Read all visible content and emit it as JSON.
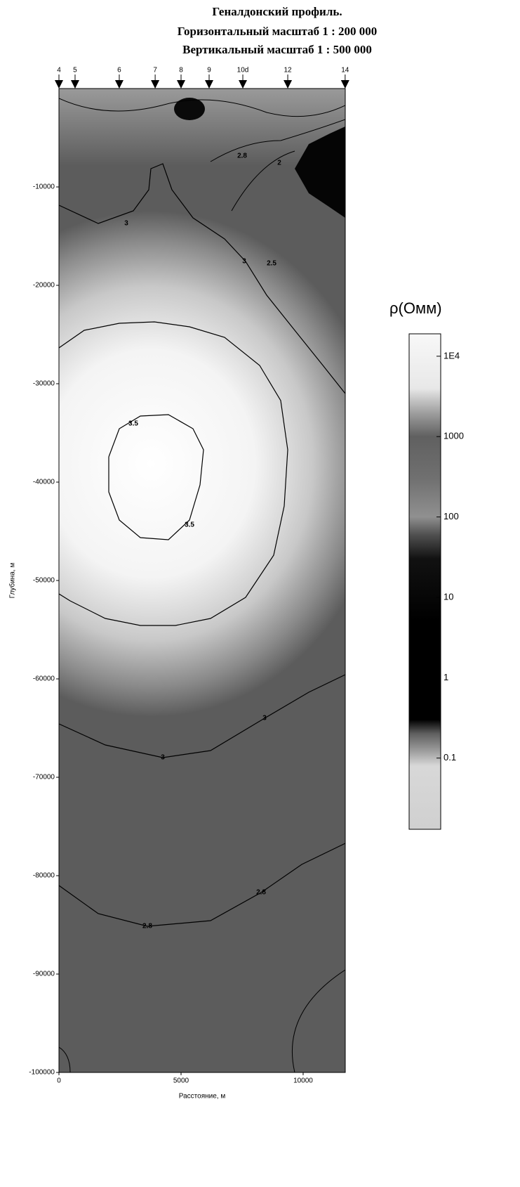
{
  "chart_data": {
    "type": "contour",
    "title": [
      "Геналдонский профиль.",
      "Горизонтальный масштаб 1 : 200 000",
      "Вертикальный масштаб 1 : 500 000"
    ],
    "x_label": "Расстояние, м",
    "y_label": "Глубина, м",
    "xlim": [
      0,
      11725
    ],
    "ylim": [
      -100000,
      0
    ],
    "xticks": [
      0,
      5000,
      10000
    ],
    "yticks": [
      -10000,
      -20000,
      -30000,
      -40000,
      -50000,
      -60000,
      -70000,
      -80000,
      -90000,
      -100000
    ],
    "stations": {
      "labels": [
        "4",
        "5",
        "6",
        "7",
        "8",
        "9",
        "10d",
        "12",
        "14"
      ],
      "x": [
        0,
        660,
        2470,
        3940,
        5000,
        6150,
        7530,
        9370,
        11720
      ]
    },
    "contours": [
      {
        "level": 3.5,
        "x": [
          2040,
          2472,
          3334,
          4483,
          5489,
          5920,
          5777,
          5346,
          4483,
          3334,
          2472,
          2040,
          2040
        ],
        "y": [
          -37429,
          -34571,
          -33286,
          -33143,
          -34571,
          -36714,
          -40286,
          -43857,
          -45857,
          -45643,
          -43857,
          -41000,
          -37429
        ]
      },
      {
        "level": 3,
        "x": [
          0,
          1035,
          2472,
          3909,
          5346,
          6783,
          8220,
          9082,
          9369,
          9226,
          8795,
          7645,
          6208,
          4771,
          3334,
          1897,
          460,
          0
        ],
        "y": [
          -26357,
          -24571,
          -23857,
          -23714,
          -24214,
          -25286,
          -28143,
          -31714,
          -36714,
          -42429,
          -47429,
          -51714,
          -53857,
          -54571,
          -54571,
          -53857,
          -52071,
          -51357
        ]
      },
      {
        "level": 3,
        "x": [
          0,
          1609,
          3046,
          3679,
          3765,
          4253,
          4627,
          5489,
          6783,
          7645,
          8507,
          9656,
          10811,
          11725
        ],
        "y": [
          -11857,
          -13714,
          -12429,
          -10286,
          -8143,
          -7643,
          -10286,
          -13143,
          -15286,
          -17571,
          -21000,
          -24571,
          -28143,
          -31000
        ]
      },
      {
        "level": 3,
        "x": [
          0,
          1897,
          4253,
          6208,
          8421,
          10231,
          11725
        ],
        "y": [
          -64571,
          -66714,
          -68000,
          -67286,
          -64000,
          -61357,
          -59571
        ]
      },
      {
        "level": 2.8,
        "x": [
          0,
          1609,
          3621,
          6208,
          8277,
          9944,
          11725
        ],
        "y": [
          -81000,
          -83857,
          -85143,
          -84571,
          -81714,
          -78857,
          -76714
        ]
      }
    ],
    "contour_labels": [
      {
        "level": 3,
        "x": 2759,
        "y": -13714
      },
      {
        "level": 3,
        "x": 7588,
        "y": -17571
      },
      {
        "level": 3.5,
        "x": 3046,
        "y": -34071
      },
      {
        "level": 3.5,
        "x": 5346,
        "y": -44357
      },
      {
        "level": 3,
        "x": 4253,
        "y": -68000
      },
      {
        "level": 3,
        "x": 8421,
        "y": -64000
      },
      {
        "level": 2.8,
        "x": 3621,
        "y": -85143
      },
      {
        "level": 2.8,
        "x": 8277,
        "y": -81714
      },
      {
        "level": 2.8,
        "x": 7502,
        "y": -6857
      },
      {
        "level": 2,
        "x": 9025,
        "y": -7571
      },
      {
        "level": 2.5,
        "x": 8709,
        "y": -17786
      }
    ],
    "colorbar": {
      "label": "ρ(Омм)",
      "log_scale": true,
      "clim": [
        0.013,
        19000
      ],
      "ticks": [
        {
          "value": 10000,
          "label": "1E4"
        },
        1000,
        100,
        10,
        1,
        0.1
      ],
      "colormap": [
        [
          19000,
          "#f8f8f8"
        ],
        [
          4000,
          "#e8e8e8"
        ],
        [
          2000,
          "#a0a0a0"
        ],
        [
          1000,
          "#606060"
        ],
        [
          300,
          "#707070"
        ],
        [
          100,
          "#909090"
        ],
        [
          60,
          "#505050"
        ],
        [
          30,
          "#111111"
        ],
        [
          5,
          "#000000"
        ],
        [
          0.3,
          "#000000"
        ],
        [
          0.2,
          "#606060"
        ],
        [
          0.12,
          "#a0a0a0"
        ],
        [
          0.08,
          "#d8d8d8"
        ],
        [
          0.013,
          "#d0d0d0"
        ]
      ]
    }
  }
}
